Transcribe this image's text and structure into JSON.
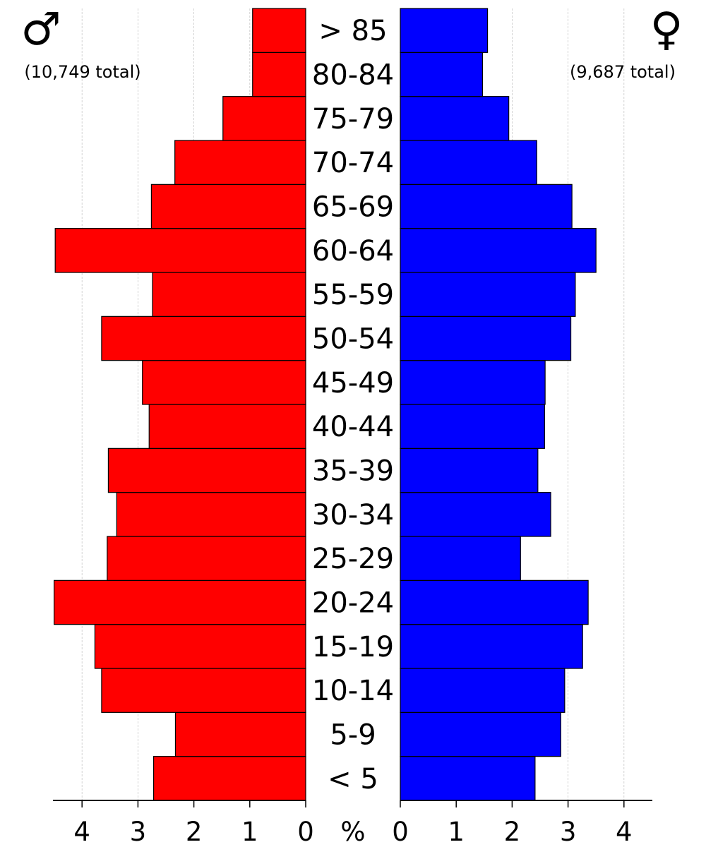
{
  "chart_data": {
    "type": "bar",
    "categories": [
      "< 5",
      "5-9",
      "10-14",
      "15-19",
      "20-24",
      "25-29",
      "30-34",
      "35-39",
      "40-44",
      "45-49",
      "50-54",
      "55-59",
      "60-64",
      "65-69",
      "70-74",
      "75-79",
      "80-84",
      "> 85"
    ],
    "series": [
      {
        "values": [
          2.72,
          2.33,
          3.65,
          3.77,
          4.5,
          3.55,
          3.38,
          3.53,
          2.8,
          2.92,
          3.65,
          2.74,
          4.48,
          2.76,
          2.34,
          1.48,
          0.95,
          0.95
        ]
      },
      {
        "values": [
          2.41,
          2.87,
          2.94,
          3.26,
          3.36,
          2.15,
          2.69,
          2.46,
          2.58,
          2.59,
          3.05,
          3.13,
          3.5,
          3.07,
          2.44,
          1.94,
          1.47,
          1.56
        ]
      }
    ],
    "xlim": [
      0,
      4.5
    ],
    "xticks": [
      "4",
      "3",
      "2",
      "1",
      "0",
      "%",
      "0",
      "1",
      "2",
      "3",
      "4"
    ],
    "grid": true,
    "male": {
      "symbol": "♂",
      "total": "(10,749 total)",
      "color": "#ff0000"
    },
    "female": {
      "symbol": "♀",
      "total": "(9,687 total)",
      "color": "#0000ff"
    }
  }
}
